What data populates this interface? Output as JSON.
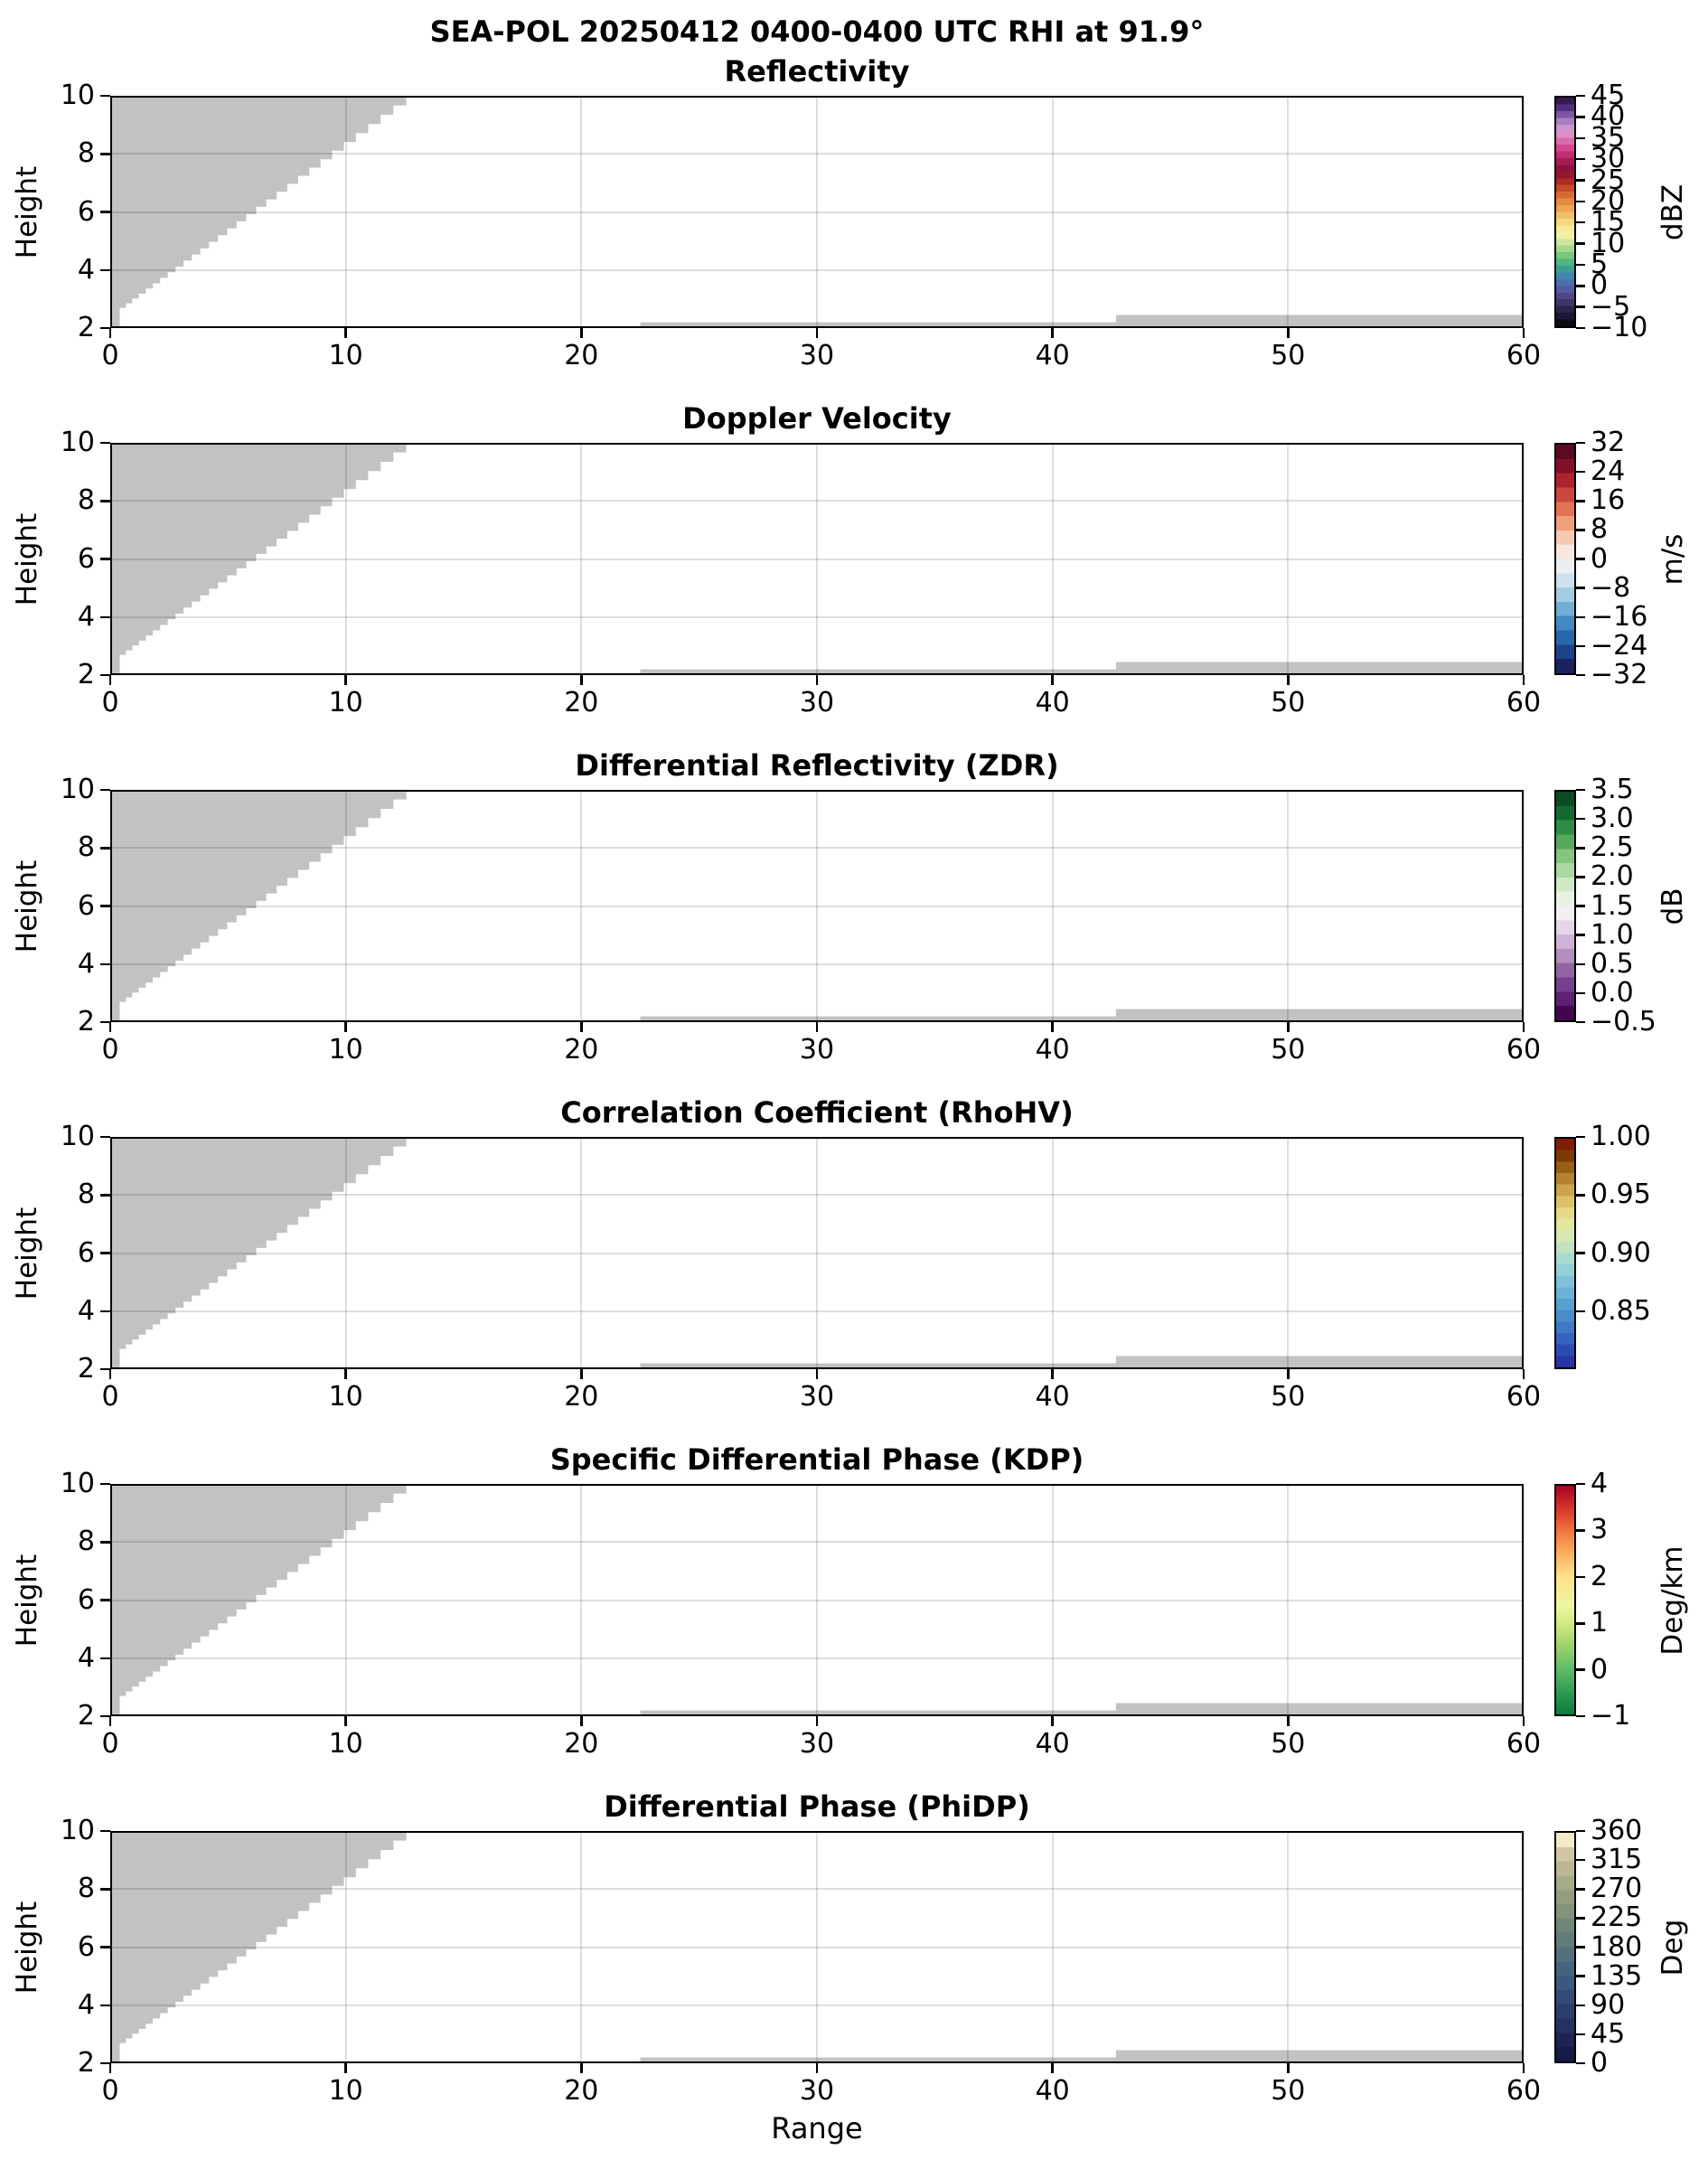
{
  "figure": {
    "main_title": "SEA-POL 20250412 0400-0400 UTC RHI at 91.9°",
    "x_axis": {
      "label": "Range",
      "min": 0,
      "max": 60,
      "ticks": [
        {
          "v": 0,
          "l": "0"
        },
        {
          "v": 10,
          "l": "10"
        },
        {
          "v": 20,
          "l": "20"
        },
        {
          "v": 30,
          "l": "30"
        },
        {
          "v": 40,
          "l": "40"
        },
        {
          "v": 50,
          "l": "50"
        },
        {
          "v": 60,
          "l": "60"
        }
      ],
      "grid_at": [
        10,
        20,
        30,
        40,
        50
      ]
    },
    "y_axis": {
      "label": "Height",
      "min": 2,
      "max": 10,
      "ticks": [
        {
          "v": 2,
          "l": "2"
        },
        {
          "v": 4,
          "l": "4"
        },
        {
          "v": 6,
          "l": "6"
        },
        {
          "v": 8,
          "l": "8"
        },
        {
          "v": 10,
          "l": "10"
        }
      ],
      "grid_at": [
        4,
        6,
        8
      ]
    },
    "colors": {
      "masked_gray": "#c2c2c2",
      "grid": "rgba(0,0,0,0.13)",
      "spine": "#000000",
      "background": "#ffffff"
    }
  },
  "panels": [
    {
      "title": "Reflectivity",
      "colorbar": {
        "label": "dBZ",
        "vmin": -10,
        "vmax": 45,
        "ticks": [
          {
            "v": 45,
            "l": "45"
          },
          {
            "v": 40,
            "l": "40"
          },
          {
            "v": 35,
            "l": "35"
          },
          {
            "v": 30,
            "l": "30"
          },
          {
            "v": 25,
            "l": "25"
          },
          {
            "v": 20,
            "l": "20"
          },
          {
            "v": 15,
            "l": "15"
          },
          {
            "v": 10,
            "l": "10"
          },
          {
            "v": 5,
            "l": "5"
          },
          {
            "v": 0,
            "l": "0"
          },
          {
            "v": -5,
            "l": "−5"
          },
          {
            "v": -10,
            "l": "−10"
          }
        ]
      },
      "colormap": {
        "mode": "stepped",
        "colors": [
          "#0d0a16",
          "#1d1630",
          "#2e244b",
          "#3f3569",
          "#4e4889",
          "#515ba0",
          "#4b70ab",
          "#4286ab",
          "#3d9f92",
          "#52b383",
          "#79c680",
          "#a4d78c",
          "#cde69b",
          "#eff0a5",
          "#f5ea9b",
          "#f3da7f",
          "#f0c268",
          "#eda552",
          "#e68a41",
          "#d96a33",
          "#c74a2b",
          "#b02c25",
          "#96182b",
          "#8d123e",
          "#a61c55",
          "#bf2d72",
          "#d6468f",
          "#d86bac",
          "#dc8fc3",
          "#cb96cd",
          "#a97fc0",
          "#7a57a2",
          "#53307e",
          "#381a4d"
        ]
      }
    },
    {
      "title": "Doppler Velocity",
      "colorbar": {
        "label": "m/s",
        "vmin": -32,
        "vmax": 32,
        "ticks": [
          {
            "v": 32,
            "l": "32"
          },
          {
            "v": 24,
            "l": "24"
          },
          {
            "v": 16,
            "l": "16"
          },
          {
            "v": 8,
            "l": "8"
          },
          {
            "v": 0,
            "l": "0"
          },
          {
            "v": -8,
            "l": "−8"
          },
          {
            "v": -16,
            "l": "−16"
          },
          {
            "v": -24,
            "l": "−24"
          },
          {
            "v": -32,
            "l": "−32"
          }
        ]
      },
      "colormap": {
        "mode": "stepped",
        "colors": [
          "#1b2260",
          "#1d4289",
          "#2a66ac",
          "#4488c1",
          "#72aed3",
          "#a3cce2",
          "#cde0ee",
          "#ebeff2",
          "#f7e6dc",
          "#f5c9b2",
          "#ee9f7d",
          "#e07454",
          "#cb4840",
          "#ad2330",
          "#83102a",
          "#5c0a20"
        ]
      }
    },
    {
      "title": "Differential Reflectivity (ZDR)",
      "colorbar": {
        "label": "dB",
        "vmin": -0.5,
        "vmax": 3.5,
        "ticks": [
          {
            "v": 3.5,
            "l": "3.5"
          },
          {
            "v": 3.0,
            "l": "3.0"
          },
          {
            "v": 2.5,
            "l": "2.5"
          },
          {
            "v": 2.0,
            "l": "2.0"
          },
          {
            "v": 1.5,
            "l": "1.5"
          },
          {
            "v": 1.0,
            "l": "1.0"
          },
          {
            "v": 0.5,
            "l": "0.5"
          },
          {
            "v": 0.0,
            "l": "0.0"
          },
          {
            "v": -0.5,
            "l": "−0.5"
          }
        ]
      },
      "colormap": {
        "mode": "stepped",
        "colors": [
          "#43054e",
          "#5c2271",
          "#76408c",
          "#9166a4",
          "#b28fbc",
          "#cfb3d4",
          "#e5d6e7",
          "#f2eef2",
          "#e8f2e2",
          "#cfe8c6",
          "#aad7a2",
          "#84c47f",
          "#57a85f",
          "#2f8c44",
          "#15692f",
          "#0b4a22"
        ]
      }
    },
    {
      "title": "Correlation Coefficient (RhoHV)",
      "colorbar": {
        "label": "",
        "vmin": 0.8,
        "vmax": 1.0,
        "ticks": [
          {
            "v": 1.0,
            "l": "1.00"
          },
          {
            "v": 0.95,
            "l": "0.95"
          },
          {
            "v": 0.9,
            "l": "0.90"
          },
          {
            "v": 0.85,
            "l": "0.85"
          }
        ]
      },
      "colormap": {
        "mode": "stepped",
        "colors": [
          "#2836a5",
          "#2c4cb3",
          "#3563bf",
          "#3f78c6",
          "#4b8ccb",
          "#59a0d1",
          "#6bb2d6",
          "#7fc1da",
          "#95cfd8",
          "#aadacf",
          "#c1e2c2",
          "#d6e7b2",
          "#e5e69e",
          "#e7d886",
          "#ddc069",
          "#cda44b",
          "#b5832d",
          "#985f14",
          "#7e3a05",
          "#801c04"
        ]
      }
    },
    {
      "title": "Specific Differential Phase (KDP)",
      "colorbar": {
        "label": "Deg/km",
        "vmin": -1,
        "vmax": 4,
        "ticks": [
          {
            "v": 4,
            "l": "4"
          },
          {
            "v": 3,
            "l": "3"
          },
          {
            "v": 2,
            "l": "2"
          },
          {
            "v": 1,
            "l": "1"
          },
          {
            "v": 0,
            "l": "0"
          },
          {
            "v": -1,
            "l": "−1"
          }
        ]
      },
      "colormap": {
        "mode": "smooth",
        "stops": [
          [
            0,
            "#0a7b41"
          ],
          [
            10,
            "#2f9c52"
          ],
          [
            20,
            "#63bb67"
          ],
          [
            30,
            "#9ed26b"
          ],
          [
            40,
            "#d3ea85"
          ],
          [
            48,
            "#eef5a3"
          ],
          [
            60,
            "#fee289"
          ],
          [
            70,
            "#fcb25e"
          ],
          [
            80,
            "#f2773f"
          ],
          [
            90,
            "#d6352b"
          ],
          [
            100,
            "#a80226"
          ]
        ]
      }
    },
    {
      "title": "Differential Phase (PhiDP)",
      "colorbar": {
        "label": "Deg",
        "vmin": 0,
        "vmax": 360,
        "ticks": [
          {
            "v": 360,
            "l": "360"
          },
          {
            "v": 315,
            "l": "315"
          },
          {
            "v": 270,
            "l": "270"
          },
          {
            "v": 225,
            "l": "225"
          },
          {
            "v": 180,
            "l": "180"
          },
          {
            "v": 135,
            "l": "135"
          },
          {
            "v": 90,
            "l": "90"
          },
          {
            "v": 45,
            "l": "45"
          },
          {
            "v": 0,
            "l": "0"
          }
        ]
      },
      "colormap": {
        "mode": "stepped",
        "colors": [
          "#161a45",
          "#1d2553",
          "#243161",
          "#2b3e6d",
          "#334b76",
          "#3c587c",
          "#47647e",
          "#53707c",
          "#617c79",
          "#708777",
          "#81937a",
          "#939e7f",
          "#a6aa87",
          "#bbb793",
          "#d2c6a3",
          "#f2ebc8"
        ]
      }
    }
  ],
  "chart_data": {
    "type": "heatmap",
    "title": "SEA-POL 20250412 0400-0400 UTC RHI at 91.9°",
    "xlabel": "Range",
    "ylabel": "Height",
    "xlim": [
      0,
      60
    ],
    "ylim": [
      2,
      10
    ],
    "grid": true,
    "panels": [
      {
        "title": "Reflectivity",
        "unit": "dBZ",
        "scale_range": [
          -10,
          45
        ],
        "tick_step": 5
      },
      {
        "title": "Doppler Velocity",
        "unit": "m/s",
        "scale_range": [
          -32,
          32
        ],
        "tick_step": 8
      },
      {
        "title": "Differential Reflectivity (ZDR)",
        "unit": "dB",
        "scale_range": [
          -0.5,
          3.5
        ],
        "tick_step": 0.5
      },
      {
        "title": "Correlation Coefficient (RhoHV)",
        "unit": "",
        "scale_range": [
          0.8,
          1.0
        ],
        "tick_step": 0.05
      },
      {
        "title": "Specific Differential Phase (KDP)",
        "unit": "Deg/km",
        "scale_range": [
          -1,
          4
        ],
        "tick_step": 1
      },
      {
        "title": "Differential Phase (PhiDP)",
        "unit": "Deg",
        "scale_range": [
          0,
          360
        ],
        "tick_step": 45
      }
    ],
    "masked_regions": {
      "note": "identical gray (no-data) mask on all six panels",
      "wedge": {
        "description": "stepped diagonal wedge filling upper-left of each panel",
        "boundary_from": [
          0.4,
          2.7
        ],
        "boundary_to": [
          12.6,
          10.0
        ],
        "sliver_reaching_bottom_x": [
          0,
          0.4
        ]
      },
      "strips": [
        {
          "x": [
            22.5,
            42.7
          ],
          "y": [
            2.0,
            2.2
          ]
        },
        {
          "x": [
            42.7,
            60.0
          ],
          "y": [
            2.0,
            2.45
          ]
        }
      ]
    }
  }
}
